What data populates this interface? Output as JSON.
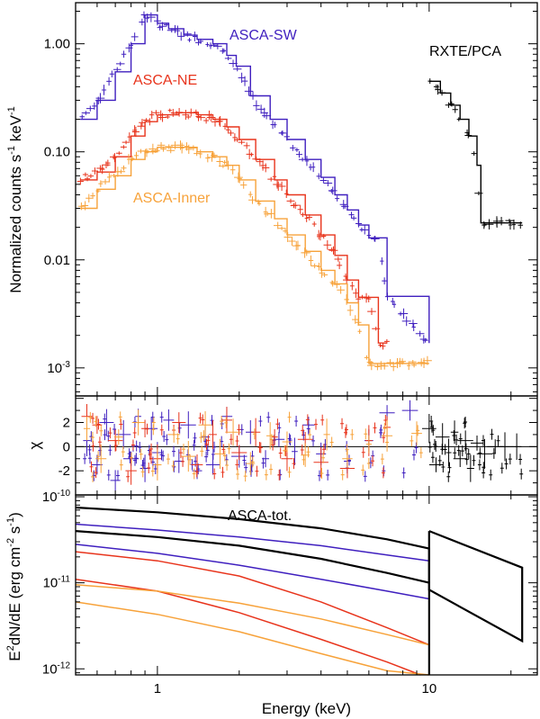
{
  "chart_data": [
    {
      "type": "line",
      "panel": "spectrum",
      "xlabel": "",
      "ylabel_parts": {
        "main": "Normalized counts s",
        "exp1": "-1",
        "mid": " keV",
        "exp2": "-1"
      },
      "x_scale": "log",
      "y_scale": "log",
      "xlim": [
        0.5,
        25
      ],
      "ylim": [
        0.00055,
        2.4
      ],
      "y_tick_labels": [
        {
          "value": 1,
          "label": "1.00"
        },
        {
          "value": 0.1,
          "label": "0.10"
        },
        {
          "value": 0.01,
          "label": "0.01"
        },
        {
          "value": 0.001,
          "base": "10",
          "exp": "-3"
        }
      ],
      "series": [
        {
          "name": "ASCA-SW",
          "color": "#3f1fbf",
          "x": [
            0.52,
            0.6,
            0.7,
            0.8,
            0.9,
            1.0,
            1.1,
            1.25,
            1.4,
            1.6,
            1.8,
            1.95,
            2.2,
            2.6,
            3.0,
            3.5,
            4.0,
            4.5,
            5.0,
            5.5,
            6.0,
            6.5,
            7.0,
            10.0
          ],
          "y": [
            0.2,
            0.3,
            0.55,
            1.0,
            1.85,
            1.55,
            1.38,
            1.2,
            1.1,
            1.0,
            0.78,
            0.62,
            0.33,
            0.2,
            0.13,
            0.085,
            0.058,
            0.04,
            0.029,
            0.021,
            0.016,
            0.016,
            0.0046,
            0.0017
          ]
        },
        {
          "name": "ASCA-NE",
          "color": "#e8341c",
          "x": [
            0.52,
            0.6,
            0.7,
            0.8,
            0.9,
            1.0,
            1.2,
            1.4,
            1.6,
            1.8,
            2.0,
            2.3,
            2.7,
            3.0,
            3.5,
            4.0,
            4.5,
            5.0,
            5.5,
            6.0,
            6.5,
            7.0
          ],
          "y": [
            0.055,
            0.065,
            0.09,
            0.14,
            0.19,
            0.22,
            0.23,
            0.22,
            0.2,
            0.17,
            0.13,
            0.085,
            0.055,
            0.04,
            0.026,
            0.017,
            0.011,
            0.0065,
            0.0045,
            0.0045,
            0.0017,
            0.0017
          ]
        },
        {
          "name": "ASCA-Inner",
          "color": "#f7a23a",
          "x": [
            0.52,
            0.6,
            0.7,
            0.8,
            0.9,
            1.0,
            1.2,
            1.4,
            1.6,
            1.8,
            2.0,
            2.3,
            2.7,
            3.0,
            3.5,
            4.0,
            4.5,
            5.0,
            5.5,
            6.0,
            7.0,
            10.0
          ],
          "y": [
            0.03,
            0.045,
            0.06,
            0.085,
            0.1,
            0.11,
            0.11,
            0.1,
            0.09,
            0.075,
            0.055,
            0.035,
            0.024,
            0.017,
            0.012,
            0.008,
            0.006,
            0.004,
            0.0025,
            0.0011,
            0.0011,
            0.0011
          ]
        },
        {
          "name": "RXTE/PCA",
          "color": "#000000",
          "x": [
            10.0,
            11.0,
            12.0,
            13.0,
            14.0,
            15.0,
            15.5,
            17.0,
            19.0,
            22.0
          ],
          "y": [
            0.45,
            0.35,
            0.27,
            0.2,
            0.14,
            0.075,
            0.022,
            0.022,
            0.022,
            0.022
          ]
        }
      ]
    },
    {
      "type": "scatter",
      "panel": "residuals",
      "ylabel": "χ",
      "x_scale": "log",
      "xlim": [
        0.5,
        25
      ],
      "ylim": [
        -4,
        4.2
      ],
      "y_tick_labels": [
        {
          "value": 2,
          "label": "2"
        },
        {
          "value": 0,
          "label": "0"
        },
        {
          "value": -2,
          "label": "-2"
        }
      ],
      "series": [
        {
          "name": "",
          "color": "#3f1fbf",
          "x": [
            0.55,
            0.6,
            0.65,
            0.7,
            0.75,
            0.8,
            0.85,
            0.9,
            0.95,
            1.0,
            1.1,
            1.2,
            1.3,
            1.4,
            1.5,
            1.6,
            1.8,
            2.0,
            2.2,
            2.5,
            2.8,
            3.2,
            3.6,
            4.0,
            5.0,
            6.0,
            7.0,
            8.5
          ],
          "y": [
            0.5,
            -1.5,
            2.0,
            -2.8,
            1.0,
            -1.0,
            2.5,
            -1.8,
            1.5,
            -0.5,
            2.2,
            -1.2,
            1.8,
            -2.0,
            0.8,
            -1.5,
            2.5,
            -0.8,
            1.2,
            -1.0,
            0.6,
            -0.4,
            1.8,
            -0.6,
            -1.2,
            0.5,
            2.8,
            3.0
          ]
        },
        {
          "name": "",
          "color": "#e8341c",
          "x": [
            0.55,
            0.6,
            0.7,
            0.8,
            0.9,
            1.0,
            1.2,
            1.4,
            1.6,
            1.8,
            2.0,
            2.3,
            2.7,
            3.0,
            3.5,
            4.0,
            5.0,
            6.0,
            7.0
          ],
          "y": [
            2.5,
            1.8,
            0.5,
            -2.0,
            1.5,
            -1.0,
            2.0,
            -1.5,
            1.0,
            2.2,
            -0.5,
            1.2,
            0.8,
            -1.0,
            0.6,
            -1.3,
            -1.8,
            0.5,
            1.6
          ]
        },
        {
          "name": "",
          "color": "#f7a23a",
          "x": [
            0.55,
            0.62,
            0.72,
            0.85,
            1.0,
            1.15,
            1.3,
            1.5,
            1.7,
            1.9,
            2.2,
            2.6,
            3.0,
            3.5,
            4.2,
            5.0,
            6.0,
            7.0,
            9.0
          ],
          "y": [
            1.5,
            -1.0,
            0.8,
            2.0,
            -1.5,
            1.0,
            -0.8,
            1.8,
            -0.6,
            1.2,
            -1.4,
            0.9,
            0.4,
            -0.7,
            1.0,
            -1.0,
            0.2,
            0.9,
            1.1
          ]
        },
        {
          "name": "",
          "color": "#000000",
          "x": [
            10.0,
            10.6,
            11.2,
            11.8,
            12.4,
            13.0,
            13.6,
            14.2,
            15.0,
            16.0,
            17.5,
            19.0,
            21.0
          ],
          "y": [
            1.5,
            -1.5,
            0.8,
            -0.5,
            1.2,
            -1.0,
            0.5,
            -1.8,
            0.3,
            -0.6,
            0.0,
            0.0,
            0.0
          ]
        }
      ]
    },
    {
      "type": "line",
      "panel": "model",
      "xlabel": "Energy (keV)",
      "ylabel_parts": {
        "pre": "E",
        "sup1": "2",
        "main": "dN/dE (erg cm",
        "sup2": "-2",
        "mid": " s",
        "sup3": "-1",
        "end": ")"
      },
      "annotation": "ASCA-tot.",
      "x_scale": "log",
      "y_scale": "log",
      "xlim": [
        0.5,
        25
      ],
      "ylim": [
        8.5e-13,
        1.05e-10
      ],
      "x_tick_labels": [
        {
          "value": 1,
          "label": "1"
        },
        {
          "value": 10,
          "label": "10"
        }
      ],
      "y_tick_labels": [
        {
          "value": 1e-10,
          "base": "10",
          "exp": "-10"
        },
        {
          "value": 1e-11,
          "base": "10",
          "exp": "-11"
        },
        {
          "value": 1e-12,
          "base": "10",
          "exp": "-12"
        }
      ],
      "series": [
        {
          "name": "",
          "color": "#000000",
          "x": [
            0.5,
            1,
            2,
            4,
            7,
            10
          ],
          "y": [
            7.5e-11,
            6.6e-11,
            5.5e-11,
            4.3e-11,
            3.2e-11,
            2.5e-11
          ]
        },
        {
          "name": "",
          "color": "#000000",
          "x": [
            0.5,
            1,
            2,
            4,
            7,
            10
          ],
          "y": [
            4e-11,
            3.4e-11,
            2.7e-11,
            1.9e-11,
            1.3e-11,
            1e-11
          ]
        },
        {
          "name": "",
          "color": "#3f1fbf",
          "x": [
            0.5,
            1,
            2,
            4,
            7,
            10
          ],
          "y": [
            4.8e-11,
            4.1e-11,
            3.4e-11,
            2.7e-11,
            2.1e-11,
            1.8e-11
          ]
        },
        {
          "name": "",
          "color": "#3f1fbf",
          "x": [
            0.5,
            1,
            2,
            4,
            7,
            10
          ],
          "y": [
            2.8e-11,
            2.2e-11,
            1.6e-11,
            1.1e-11,
            8e-12,
            6.5e-12
          ]
        },
        {
          "name": "",
          "color": "#e8341c",
          "x": [
            0.5,
            1,
            2,
            4,
            7,
            10
          ],
          "y": [
            2.3e-11,
            1.8e-11,
            1.2e-11,
            6e-12,
            3e-12,
            1.9e-12
          ]
        },
        {
          "name": "",
          "color": "#e8341c",
          "x": [
            0.5,
            1,
            2,
            4,
            7,
            9.3
          ],
          "y": [
            1.1e-11,
            8e-12,
            4.5e-12,
            2.2e-12,
            1.2e-12,
            8.5e-13
          ]
        },
        {
          "name": "",
          "color": "#f7a23a",
          "x": [
            0.5,
            1,
            2,
            4,
            7,
            10
          ],
          "y": [
            9.5e-12,
            8e-12,
            5.8e-12,
            3.8e-12,
            2.5e-12,
            1.9e-12
          ]
        },
        {
          "name": "",
          "color": "#f7a23a",
          "x": [
            0.5,
            1,
            2,
            4,
            7,
            10
          ],
          "y": [
            6e-12,
            4.3e-12,
            2.7e-12,
            1.5e-12,
            9.5e-13,
            8.5e-13
          ]
        },
        {
          "name": "",
          "color": "#000000",
          "x": [
            10,
            10,
            22,
            22,
            10
          ],
          "y": [
            4e-11,
            8.3e-12,
            2.1e-12,
            1.5e-11,
            4e-11
          ]
        }
      ]
    }
  ]
}
